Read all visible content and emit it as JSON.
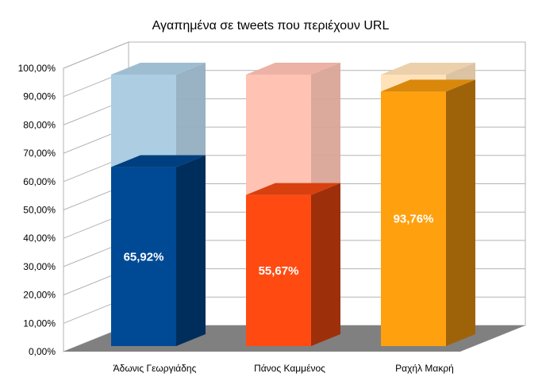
{
  "chart_data": {
    "type": "bar",
    "title": "Αγαπημένα σε tweets που περιέχουν URL",
    "xlabel": "",
    "ylabel": "",
    "categories": [
      "Άδωνις Γεωργιάδης",
      "Πάνος Καμμένος",
      "Ραχήλ Μακρή"
    ],
    "values": [
      65.92,
      55.67,
      93.76
    ],
    "value_labels": [
      "65,92%",
      "55,67%",
      "93,76%"
    ],
    "ylim": [
      0,
      100
    ],
    "yticks": [
      "0,00%",
      "10,00%",
      "20,00%",
      "30,00%",
      "40,00%",
      "50,00%",
      "60,00%",
      "70,00%",
      "80,00%",
      "90,00%",
      "100,00%"
    ],
    "grid": true,
    "legend": "none",
    "three_d": true,
    "colors": [
      "#004a95",
      "#ff4b12",
      "#ffa00e"
    ],
    "ghost_colors": [
      "#adcde3",
      "#ffc2b3",
      "#ffe2ba"
    ]
  }
}
